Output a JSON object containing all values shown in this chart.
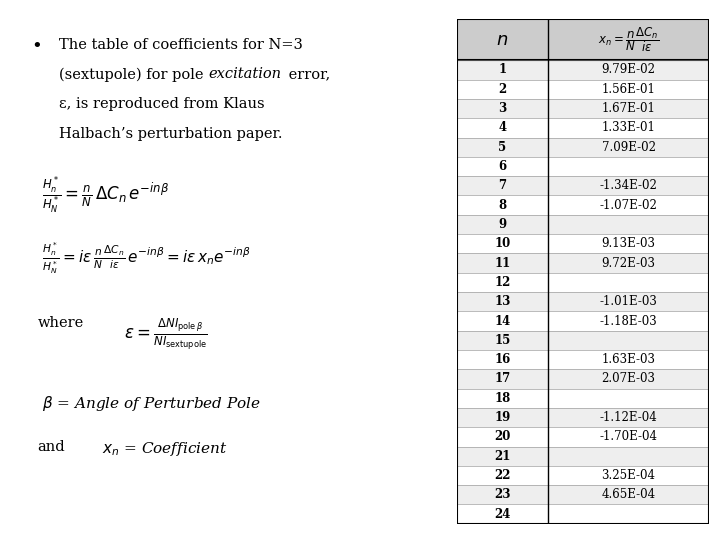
{
  "background_color": "#ffffff",
  "n_values": [
    1,
    2,
    3,
    4,
    5,
    6,
    7,
    8,
    9,
    10,
    11,
    12,
    13,
    14,
    15,
    16,
    17,
    18,
    19,
    20,
    21,
    22,
    23,
    24
  ],
  "xn_values": [
    "9.79E-02",
    "1.56E-01",
    "1.67E-01",
    "1.33E-01",
    "7.09E-02",
    "",
    "-1.34E-02",
    "-1.07E-02",
    "",
    "9.13E-03",
    "9.72E-03",
    "",
    "-1.01E-03",
    "-1.18E-03",
    "",
    "1.63E-03",
    "2.07E-03",
    "",
    "-1.12E-04",
    "-1.70E-04",
    "",
    "3.25E-04",
    "4.65E-04",
    ""
  ],
  "text_color": "#000000",
  "row_bg_light": "#eeeeee",
  "row_bg_white": "#ffffff",
  "header_bg": "#cccccc"
}
